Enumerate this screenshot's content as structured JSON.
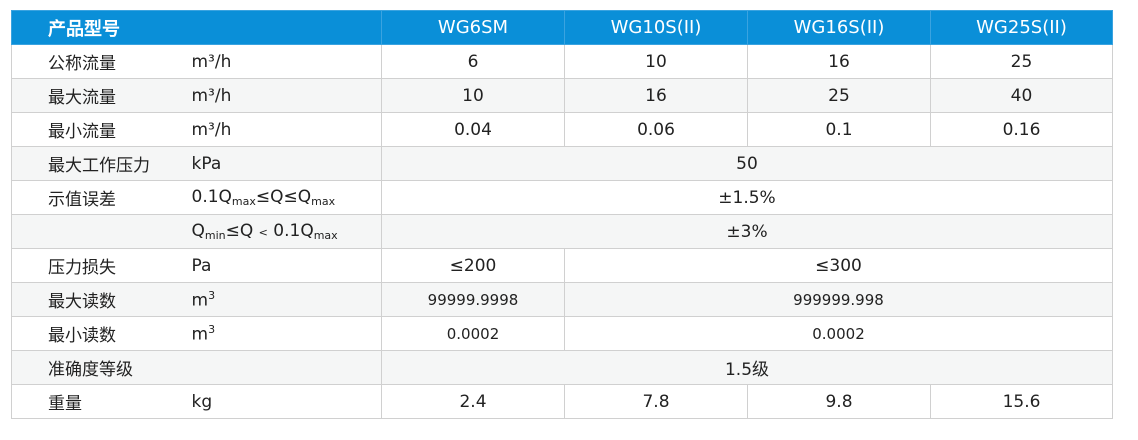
{
  "header": {
    "label": "产品型号",
    "models": [
      "WG6SM",
      "WG10S(II)",
      "WG16S(II)",
      "WG25S(II)"
    ]
  },
  "rows": [
    {
      "label": "公称流量",
      "unit": "m³/h",
      "values": [
        "6",
        "10",
        "16",
        "25"
      ]
    },
    {
      "label": "最大流量",
      "unit": "m³/h",
      "values": [
        "10",
        "16",
        "25",
        "40"
      ]
    },
    {
      "label": "最小流量",
      "unit": "m³/h",
      "values": [
        "0.04",
        "0.06",
        "0.1",
        "0.16"
      ]
    },
    {
      "label": "最大工作压力",
      "unit": "kPa",
      "value": "50"
    },
    {
      "label": "示值误差",
      "unit_parts": [
        "0.1Q",
        "max",
        "≤Q≤Q",
        "max"
      ],
      "value": "±1.5%"
    },
    {
      "label": "",
      "unit_parts": [
        "Q",
        "min",
        "≤Q ",
        "<",
        " 0.1Q",
        "max"
      ],
      "value": "±3%"
    },
    {
      "label": "压力损失",
      "unit": "Pa",
      "values": [
        "≤200",
        "≤300"
      ]
    },
    {
      "label": "最大读数",
      "unit_base": "m",
      "unit_sup": "3",
      "values": [
        "99999.9998",
        "999999.998"
      ]
    },
    {
      "label": "最小读数",
      "unit_base": "m",
      "unit_sup": "3",
      "values": [
        "0.0002",
        "0.0002"
      ]
    },
    {
      "label": "准确度等级",
      "value": "1.5级"
    },
    {
      "label": "重量",
      "unit": "kg",
      "values": [
        "2.4",
        "7.8",
        "9.8",
        "15.6"
      ]
    }
  ]
}
